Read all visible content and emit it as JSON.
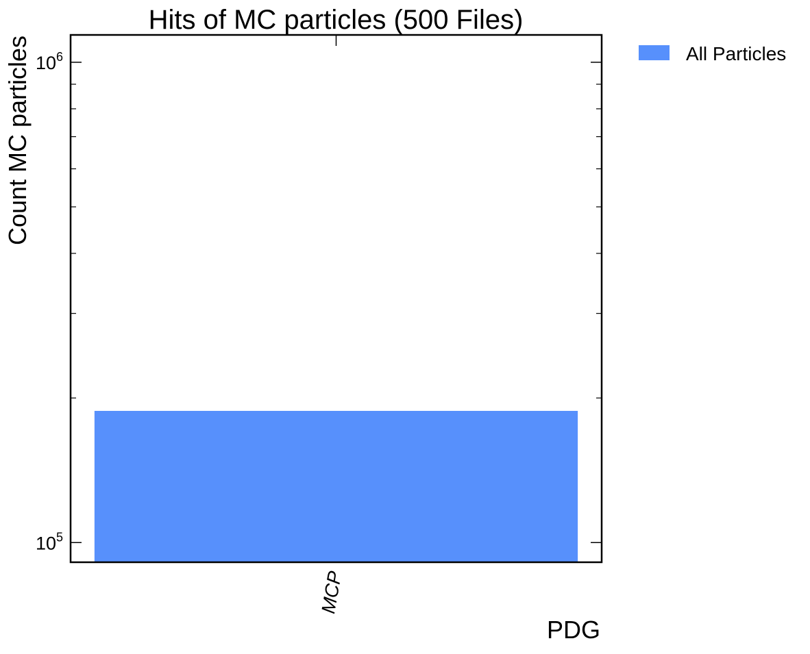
{
  "chart_data": {
    "type": "bar",
    "title": "Hits of MC particles (500 Files)",
    "xlabel": "PDG",
    "ylabel": "Count MC particles",
    "yscale": "log",
    "ylim": [
      91000,
      1140000
    ],
    "categories": [
      "MCP"
    ],
    "series": [
      {
        "name": "All Particles",
        "values": [
          188000
        ],
        "color": "#5790fc"
      }
    ],
    "yticks": [
      {
        "value": 100000,
        "label": "10",
        "exponent": "5"
      },
      {
        "value": 1000000,
        "label": "10",
        "exponent": "6"
      }
    ],
    "y_minor_ticks": [
      200000,
      300000,
      400000,
      500000,
      600000,
      700000,
      800000,
      900000
    ],
    "grid": false,
    "legend_position": "outside-top-right"
  }
}
